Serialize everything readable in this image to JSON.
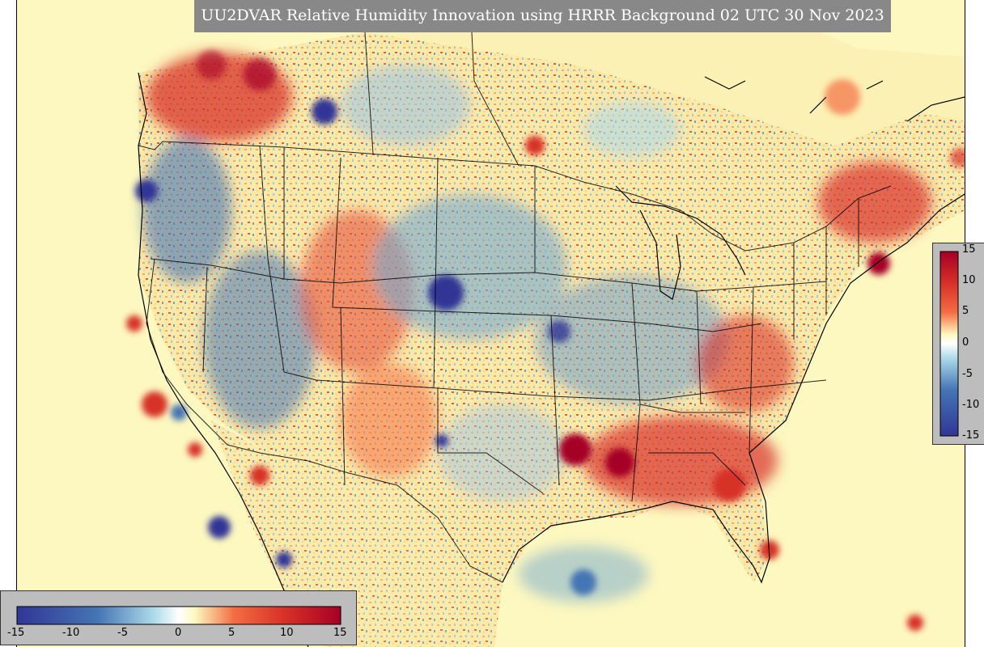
{
  "title": "UU2DVAR Relative Humidity Innovation using HRRR Background 02 UTC 30 Nov 2023",
  "colorbar": {
    "min": -15,
    "max": 15,
    "ticks": [
      "-15",
      "-10",
      "-5",
      "0",
      "5",
      "10",
      "15"
    ],
    "colors": {
      "deep_blue": "#313695",
      "mid_blue": "#4575b4",
      "light_blue": "#abd9e9",
      "neutral": "#fdf8c0",
      "orange": "#f46d43",
      "red": "#d73027",
      "dark_red": "#a50026"
    }
  },
  "map": {
    "ocean_color": "#fdf8c0",
    "border_color": "#000000"
  }
}
